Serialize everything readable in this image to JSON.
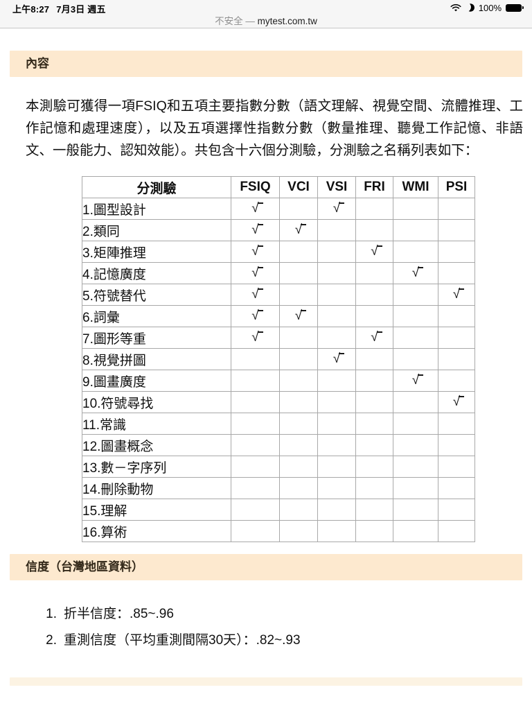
{
  "status_bar": {
    "time": "上午8:27",
    "date": "7月3日 週五",
    "battery_percent": "100%"
  },
  "address_bar": {
    "security_label": "不安全",
    "separator": "—",
    "url": "mytest.com.tw"
  },
  "sections": {
    "content_header": "內容",
    "reliability_header": "信度（台灣地區資料）"
  },
  "intro_paragraph": "本測驗可獲得一項FSIQ和五項主要指數分數（語文理解、視覺空間、流體推理、工作記憶和處理速度），以及五項選擇性指數分數（數量推理、聽覺工作記憶、非語文、一般能力、認知效能）。共包含十六個分測驗，分測驗之名稱列表如下：",
  "table": {
    "headers": [
      "分測驗",
      "FSIQ",
      "VCI",
      "VSI",
      "FRI",
      "WMI",
      "PSI"
    ],
    "check_glyph": "√",
    "rows": [
      {
        "name": "1.圖型設計",
        "marks": [
          true,
          false,
          true,
          false,
          false,
          false
        ]
      },
      {
        "name": "2.類同",
        "marks": [
          true,
          true,
          false,
          false,
          false,
          false
        ]
      },
      {
        "name": "3.矩陣推理",
        "marks": [
          true,
          false,
          false,
          true,
          false,
          false
        ]
      },
      {
        "name": "4.記憶廣度",
        "marks": [
          true,
          false,
          false,
          false,
          true,
          false
        ]
      },
      {
        "name": "5.符號替代",
        "marks": [
          true,
          false,
          false,
          false,
          false,
          true
        ]
      },
      {
        "name": "6.詞彙",
        "marks": [
          true,
          true,
          false,
          false,
          false,
          false
        ]
      },
      {
        "name": "7.圖形等重",
        "marks": [
          true,
          false,
          false,
          true,
          false,
          false
        ]
      },
      {
        "name": "8.視覺拼圖",
        "marks": [
          false,
          false,
          true,
          false,
          false,
          false
        ]
      },
      {
        "name": "9.圖畫廣度",
        "marks": [
          false,
          false,
          false,
          false,
          true,
          false
        ]
      },
      {
        "name": "10.符號尋找",
        "marks": [
          false,
          false,
          false,
          false,
          false,
          true
        ]
      },
      {
        "name": "11.常識",
        "marks": [
          false,
          false,
          false,
          false,
          false,
          false
        ]
      },
      {
        "name": "12.圖畫概念",
        "marks": [
          false,
          false,
          false,
          false,
          false,
          false
        ]
      },
      {
        "name": "13.數－字序列",
        "marks": [
          false,
          false,
          false,
          false,
          false,
          false
        ]
      },
      {
        "name": "14.刪除動物",
        "marks": [
          false,
          false,
          false,
          false,
          false,
          false
        ]
      },
      {
        "name": "15.理解",
        "marks": [
          false,
          false,
          false,
          false,
          false,
          false
        ]
      },
      {
        "name": "16.算術",
        "marks": [
          false,
          false,
          false,
          false,
          false,
          false
        ]
      }
    ]
  },
  "reliability": {
    "items": [
      {
        "num": "1.",
        "text": "折半信度：.85~.96"
      },
      {
        "num": "2.",
        "text": "重測信度（平均重測間隔30天）：.82~.93"
      }
    ]
  },
  "colors": {
    "band_background": "#fde9cf",
    "top_bar_background": "#f6f6f6",
    "table_border": "#a8a8a8"
  }
}
